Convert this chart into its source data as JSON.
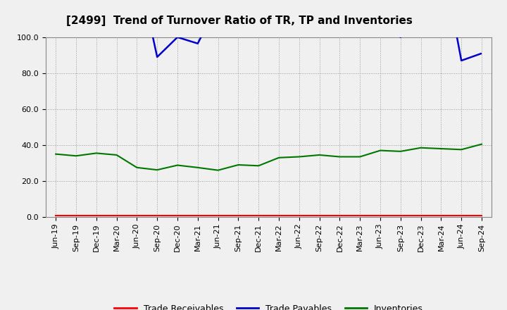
{
  "title": "[2499]  Trend of Turnover Ratio of TR, TP and Inventories",
  "ylim": [
    0.0,
    100.0
  ],
  "yticks": [
    0.0,
    20.0,
    40.0,
    60.0,
    80.0,
    100.0
  ],
  "x_labels": [
    "Jun-19",
    "Sep-19",
    "Dec-19",
    "Mar-20",
    "Jun-20",
    "Sep-20",
    "Dec-20",
    "Mar-21",
    "Jun-21",
    "Sep-21",
    "Dec-21",
    "Mar-22",
    "Jun-22",
    "Sep-22",
    "Dec-22",
    "Mar-23",
    "Jun-23",
    "Sep-23",
    "Dec-23",
    "Mar-24",
    "Jun-24",
    "Sep-24"
  ],
  "trade_receivables": [
    0.8,
    0.8,
    0.8,
    0.8,
    0.8,
    0.8,
    0.8,
    0.8,
    0.8,
    0.8,
    0.8,
    0.8,
    0.8,
    0.8,
    0.8,
    0.8,
    0.8,
    0.8,
    0.8,
    0.8,
    0.8,
    0.8
  ],
  "inventories": [
    35.0,
    34.0,
    35.5,
    34.5,
    27.5,
    26.2,
    28.8,
    27.5,
    26.0,
    29.0,
    28.5,
    33.0,
    33.5,
    34.5,
    33.5,
    33.5,
    37.0,
    36.5,
    38.5,
    38.0,
    37.5,
    40.5
  ],
  "tp_segments": [
    {
      "x": [
        4.75,
        5,
        6,
        7,
        7.25
      ],
      "y": [
        102,
        89.0,
        100.0,
        96.5,
        102
      ]
    },
    {
      "x": [
        16.75,
        17,
        17.25
      ],
      "y": [
        102,
        100.0,
        102
      ]
    },
    {
      "x": [
        19.75,
        20,
        21
      ],
      "y": [
        102,
        87.0,
        91.0
      ]
    }
  ],
  "colors": {
    "trade_receivables": "#ff0000",
    "trade_payables": "#0000cc",
    "inventories": "#007700"
  },
  "background_color": "#f0f0f0",
  "plot_background": "#f0f0f0",
  "grid_color": "#999999",
  "legend_labels": [
    "Trade Receivables",
    "Trade Payables",
    "Inventories"
  ],
  "title_fontsize": 11,
  "tick_fontsize": 8,
  "legend_fontsize": 9
}
